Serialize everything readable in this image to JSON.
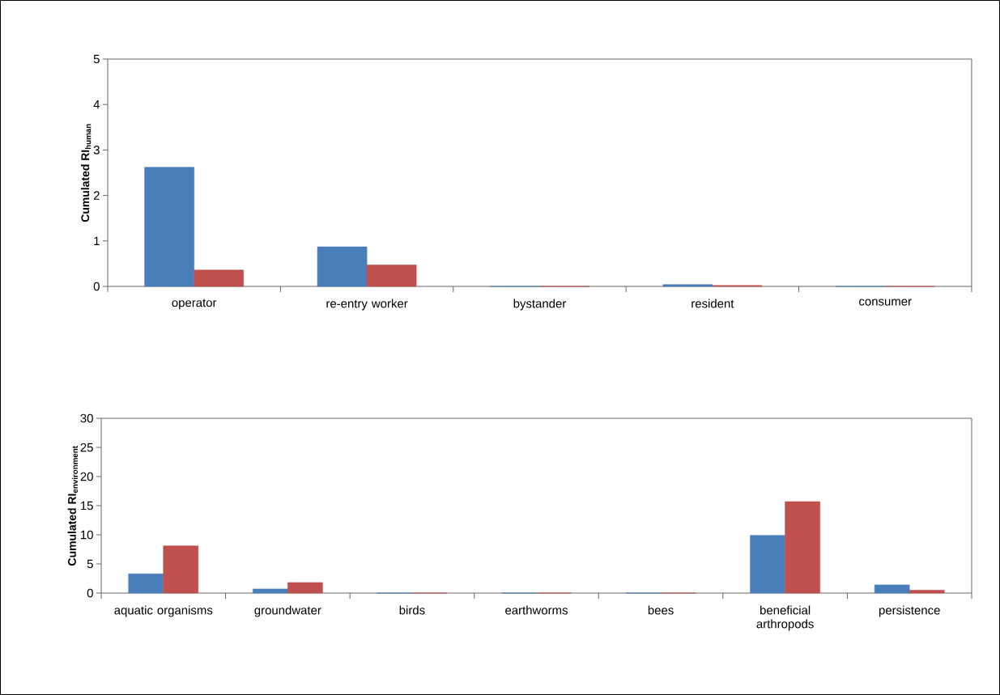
{
  "chart_data": [
    {
      "type": "bar",
      "ylabel": "\\textbf{Cumulated RI}_{\\textbf{human}}",
      "categories": [
        "operator",
        "re-entry worker",
        "bystander",
        "resident",
        "consumer"
      ],
      "series": [
        {
          "color": "#4a7ebb",
          "values": [
            2.62,
            0.87,
            0,
            0.04,
            0
          ]
        },
        {
          "color": "#c0504d",
          "values": [
            0.36,
            0.47,
            0,
            0.02,
            0
          ]
        }
      ],
      "ylim": [
        0,
        5
      ],
      "yticks": [
        0,
        1,
        2,
        3,
        4,
        5
      ]
    },
    {
      "type": "bar",
      "ylabel": "\\textbf{Cumulated RI}_{\\textbf{environment}}",
      "categories": [
        "aquatic organisms",
        "groundwater",
        "birds",
        "earthworms",
        "bees",
        "beneficial arthropods",
        "persistence"
      ],
      "series": [
        {
          "color": "#4a7ebb",
          "values": [
            3.3,
            0.7,
            0,
            0,
            0,
            9.9,
            1.4
          ]
        },
        {
          "color": "#c0504d",
          "values": [
            8.1,
            1.8,
            0,
            0,
            0,
            15.7,
            0.5
          ]
        }
      ],
      "ylim": [
        0,
        30
      ],
      "yticks": [
        0,
        5,
        10,
        15,
        20,
        25,
        30
      ]
    }
  ]
}
